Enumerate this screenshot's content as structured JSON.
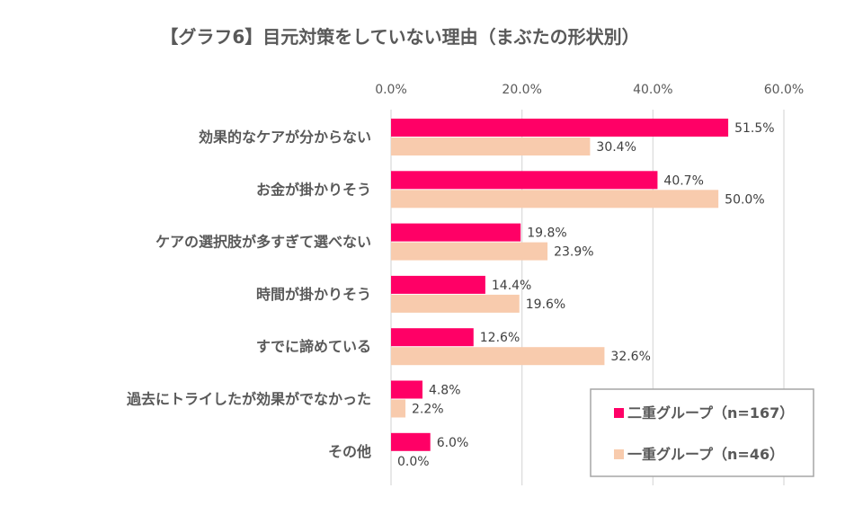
{
  "chart_data": {
    "type": "bar",
    "orientation": "horizontal",
    "title": "【グラフ6】目元対策をしていない理由（まぶたの形状別）",
    "categories": [
      "効果的なケアが分からない",
      "お金が掛かりそう",
      "ケアの選択肢が多すぎて選べない",
      "時間が掛かりそう",
      "すでに諦めている",
      "過去にトライしたが効果がでなかった",
      "その他"
    ],
    "series": [
      {
        "name": "二重グループ（n=167）",
        "color": "#FF0066",
        "values": [
          51.5,
          40.7,
          19.8,
          14.4,
          12.6,
          4.8,
          6.0
        ]
      },
      {
        "name": "一重グループ（n=46）",
        "color": "#F8CBAD",
        "values": [
          30.4,
          50.0,
          23.9,
          19.6,
          32.6,
          2.2,
          0.0
        ]
      }
    ],
    "xlim": [
      0,
      60
    ],
    "xticks": [
      "0.0%",
      "20.0%",
      "40.0%",
      "60.0%"
    ],
    "xtick_values": [
      0,
      20,
      40,
      60
    ],
    "x_axis_position": "top",
    "grid": true,
    "legend_position": "bottom-right",
    "data_labels": true
  }
}
